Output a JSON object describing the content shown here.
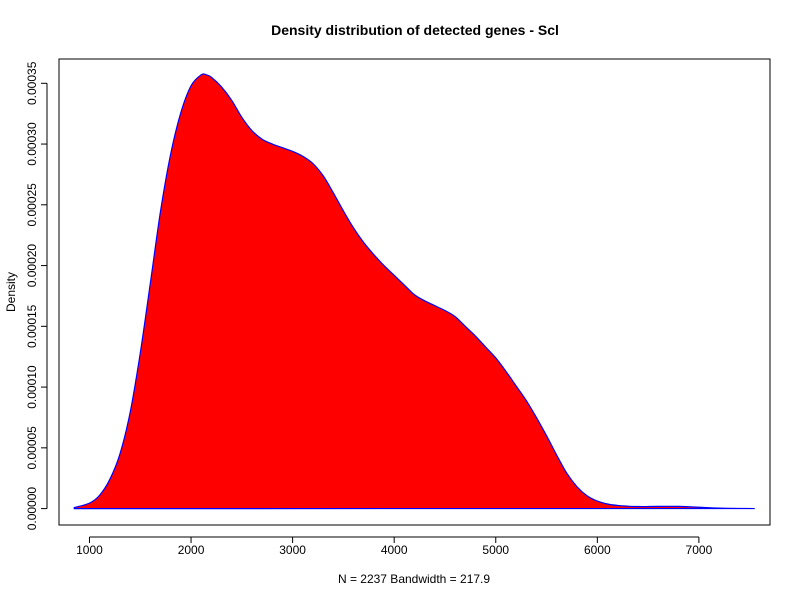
{
  "chart_data": {
    "type": "area",
    "title": "Density distribution of detected genes - Scl",
    "xlabel": "N = 2237   Bandwidth = 217.9",
    "ylabel": "Density",
    "xlim": [
      700,
      7700
    ],
    "ylim": [
      -1.35e-05,
      0.00037
    ],
    "x_ticks": [
      1000,
      2000,
      3000,
      4000,
      5000,
      6000,
      7000
    ],
    "x_tick_labels": [
      "1000",
      "2000",
      "3000",
      "4000",
      "5000",
      "6000",
      "7000"
    ],
    "y_ticks": [
      0,
      5e-05,
      0.0001,
      0.00015,
      0.0002,
      0.00025,
      0.0003,
      0.00035
    ],
    "y_tick_labels": [
      "0.00000",
      "0.00005",
      "0.00010",
      "0.00015",
      "0.00020",
      "0.00025",
      "0.00030",
      "0.00035"
    ],
    "grid": false,
    "fill_color": "#ff0000",
    "line_color": "#0000ff",
    "series": [
      {
        "x": [
          850,
          1000,
          1100,
          1200,
          1300,
          1400,
          1500,
          1600,
          1700,
          1800,
          1900,
          2000,
          2100,
          2150,
          2200,
          2300,
          2400,
          2500,
          2600,
          2700,
          2800,
          2900,
          3000,
          3100,
          3200,
          3300,
          3400,
          3500,
          3600,
          3700,
          3800,
          3900,
          4000,
          4100,
          4200,
          4300,
          4400,
          4500,
          4600,
          4700,
          4800,
          4900,
          5000,
          5100,
          5200,
          5300,
          5400,
          5500,
          5600,
          5700,
          5800,
          5900,
          6000,
          6100,
          6200,
          6300,
          6400,
          6500,
          6600,
          6700,
          6800,
          6900,
          7000,
          7100,
          7200,
          7300,
          7400,
          7550
        ],
        "y": [
          8e-07,
          4.5e-06,
          1.1e-05,
          2.4e-05,
          4.5e-05,
          7.9e-05,
          0.000128,
          0.000186,
          0.000245,
          0.000292,
          0.000326,
          0.000348,
          0.000357,
          0.000357,
          0.000355,
          0.000347,
          0.000336,
          0.000322,
          0.000311,
          0.000304,
          0.0003,
          0.000297,
          0.000294,
          0.00029,
          0.000284,
          0.000274,
          0.00026,
          0.000245,
          0.000231,
          0.000219,
          0.000209,
          0.0002,
          0.000192,
          0.000184,
          0.000176,
          0.000171,
          0.000167,
          0.000163,
          0.000158,
          0.00015,
          0.000142,
          0.000133,
          0.000124,
          0.000113,
          0.000101,
          8.9e-05,
          7.5e-05,
          6e-05,
          4.4e-05,
          2.9e-05,
          1.8e-05,
          1.05e-05,
          6.2e-06,
          3.8e-06,
          2.6e-06,
          2e-06,
          1.7e-06,
          1.7e-06,
          1.8e-06,
          1.9e-06,
          1.8e-06,
          1.5e-06,
          1.1e-06,
          7e-07,
          4e-07,
          2e-07,
          1e-07,
          3e-08
        ]
      }
    ]
  }
}
